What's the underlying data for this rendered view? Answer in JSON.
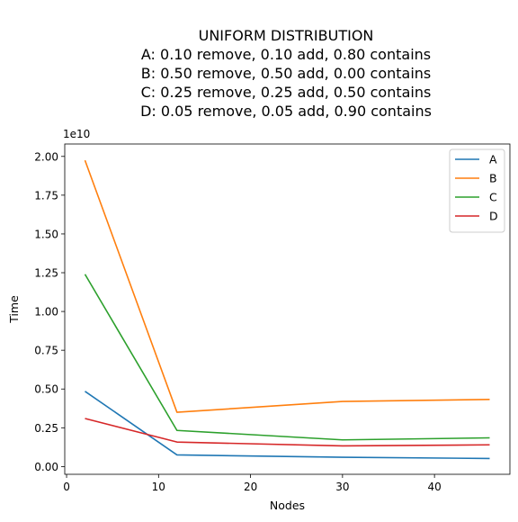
{
  "chart_data": {
    "type": "line",
    "title_lines": [
      "UNIFORM DISTRIBUTION",
      "A: 0.10 remove, 0.10 add, 0.80 contains",
      "B: 0.50 remove, 0.50 add, 0.00 contains",
      "C: 0.25 remove, 0.25 add, 0.50 contains",
      "D: 0.05 remove, 0.05 add, 0.90 contains"
    ],
    "xlabel": "Nodes",
    "ylabel": "Time",
    "y_offset_label": "1e10",
    "x": [
      2,
      12,
      30,
      46
    ],
    "xlim": [
      -0.2,
      48.2
    ],
    "ylim": [
      -0.05,
      2.08
    ],
    "y_scale_note": "values in units of 1e10",
    "xticks": [
      0,
      10,
      20,
      30,
      40
    ],
    "xtick_labels": [
      "0",
      "10",
      "20",
      "30",
      "40"
    ],
    "yticks": [
      0.0,
      0.25,
      0.5,
      0.75,
      1.0,
      1.25,
      1.5,
      1.75,
      2.0
    ],
    "ytick_labels": [
      "0.00",
      "0.25",
      "0.50",
      "0.75",
      "1.00",
      "1.25",
      "1.50",
      "1.75",
      "2.00"
    ],
    "grid": false,
    "legend_position": "top-right",
    "series": [
      {
        "name": "A",
        "color": "#1f77b4",
        "values": [
          0.485,
          0.075,
          0.06,
          0.052
        ]
      },
      {
        "name": "B",
        "color": "#ff7f0e",
        "values": [
          1.975,
          0.35,
          0.42,
          0.433
        ]
      },
      {
        "name": "C",
        "color": "#2ca02c",
        "values": [
          1.24,
          0.233,
          0.172,
          0.185
        ]
      },
      {
        "name": "D",
        "color": "#d62728",
        "values": [
          0.31,
          0.158,
          0.133,
          0.14
        ]
      }
    ]
  }
}
